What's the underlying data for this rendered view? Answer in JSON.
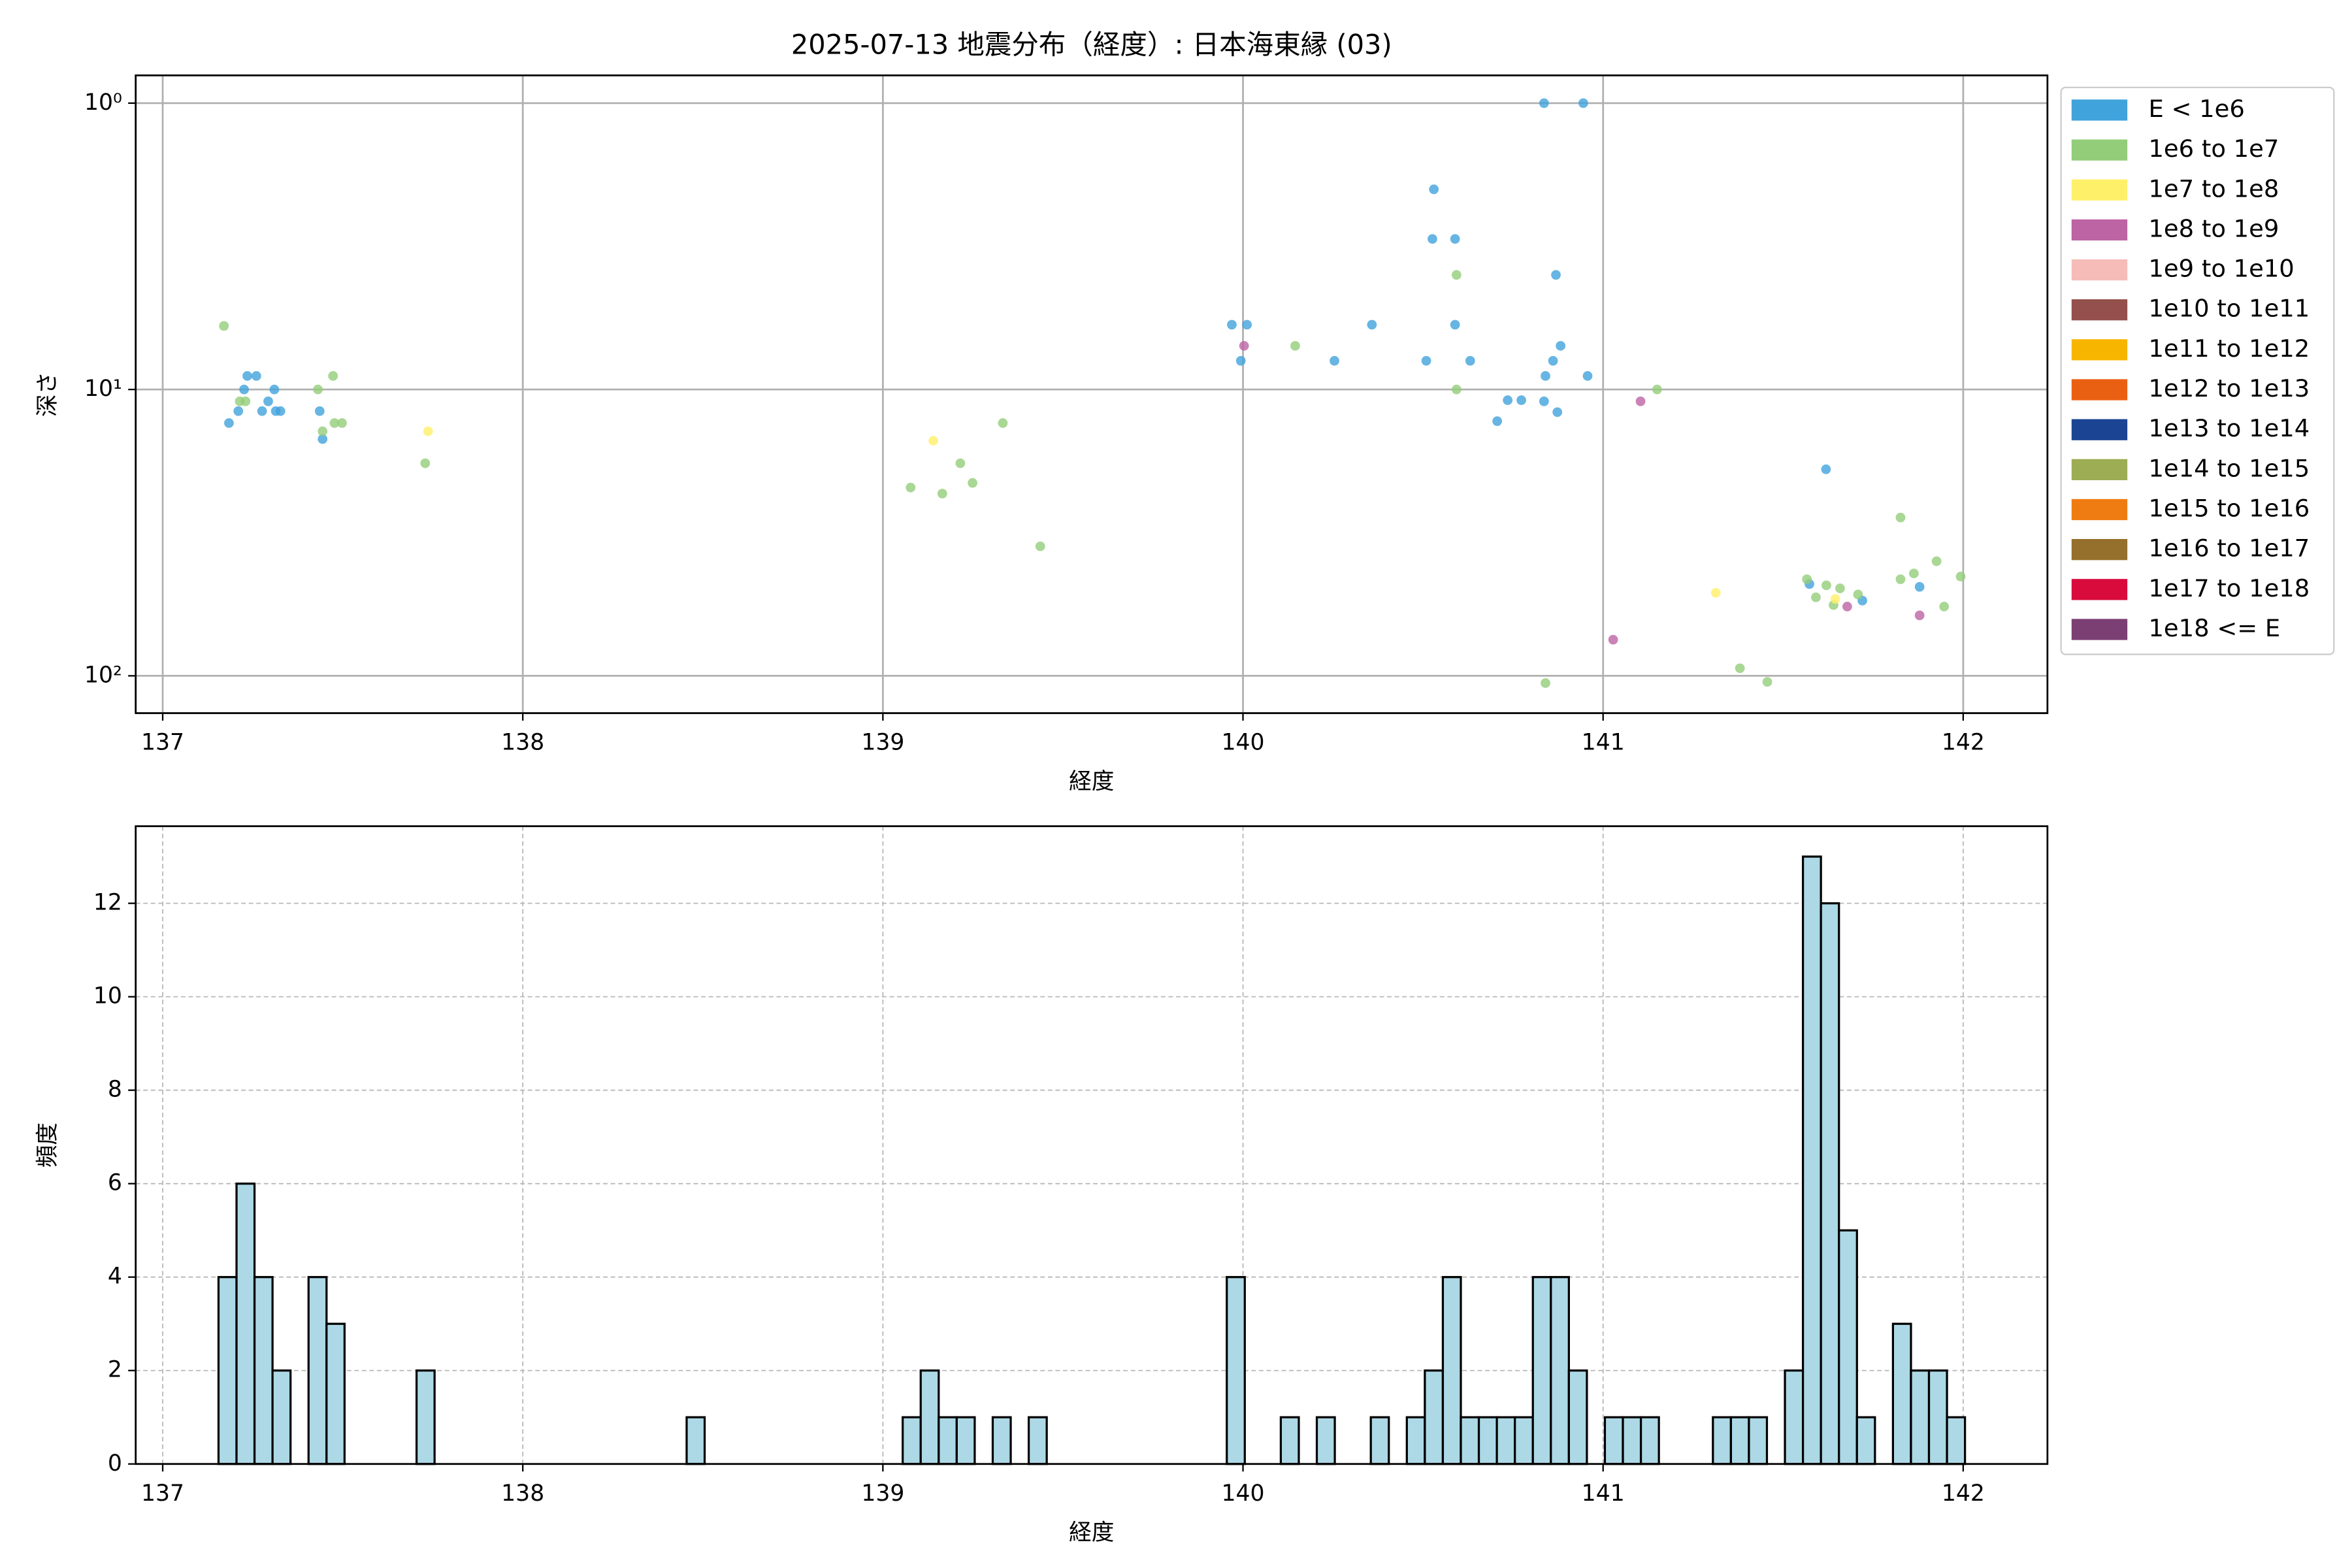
{
  "chart_data": [
    {
      "type": "scatter",
      "title": "2025-07-13 地震分布（経度）: 日本海東縁 (03)",
      "xlabel": "経度",
      "ylabel": "深さ",
      "xlim": [
        136.925,
        142.234
      ],
      "ylim": [
        135,
        0.8
      ],
      "yscale": "log",
      "grid": true,
      "legend": "outside upper right",
      "xticks": [
        137,
        138,
        139,
        140,
        141,
        142
      ],
      "yticks": [
        {
          "value": 1,
          "label": "10⁰"
        },
        {
          "value": 10,
          "label": "10¹"
        },
        {
          "value": 100,
          "label": "10²"
        }
      ],
      "series": [
        {
          "name": "E < 1e6",
          "color": "#41a3dc",
          "x": [
            137.184,
            137.21,
            137.226,
            137.235,
            137.26,
            137.276,
            137.293,
            137.31,
            137.314,
            137.327,
            137.436,
            137.444,
            139.969,
            140.011,
            139.994,
            140.254,
            140.358,
            140.509,
            140.53,
            140.526,
            140.589,
            140.589,
            140.631,
            140.706,
            140.735,
            140.773,
            140.836,
            140.945,
            140.869,
            140.882,
            140.861,
            140.84,
            140.836,
            140.873,
            140.957,
            141.619,
            141.573,
            141.72,
            141.879
          ],
          "values": [
            13.1,
            11.9,
            10,
            8.97,
            8.97,
            11.9,
            11,
            10,
            11.9,
            11.9,
            11.9,
            14.9,
            5.94,
            5.94,
            7.94,
            7.94,
            5.94,
            7.94,
            2,
            2.98,
            2.98,
            5.94,
            7.94,
            12.9,
            10.9,
            10.9,
            1,
            1,
            3.98,
            7.04,
            7.94,
            8.97,
            11,
            12,
            8.97,
            19,
            47.8,
            54.6,
            48.9
          ]
        },
        {
          "name": "1e6 to 1e7",
          "color": "#93cd79",
          "x": [
            137.17,
            137.214,
            137.23,
            137.431,
            137.473,
            137.444,
            137.477,
            137.498,
            137.729,
            139.077,
            139.165,
            139.215,
            139.249,
            139.333,
            139.437,
            140.145,
            140.593,
            140.593,
            141.15,
            141.566,
            141.591,
            141.62,
            141.658,
            141.64,
            141.708,
            141.826,
            141.826,
            141.863,
            141.926,
            141.947,
            141.993,
            141.38,
            141.456,
            140.84
          ],
          "values": [
            6,
            11,
            11,
            10,
            8.97,
            14,
            13.1,
            13.1,
            18.1,
            22,
            23.1,
            18.1,
            21.2,
            13.1,
            35.3,
            7.04,
            3.98,
            10,
            10,
            46,
            53.2,
            48.3,
            49.5,
            56.6,
            52,
            28,
            46,
            43.9,
            39.8,
            57.3,
            45,
            94.1,
            105,
            106
          ]
        },
        {
          "name": "1e7 to 1e8",
          "color": "#fff06a",
          "x": [
            137.737,
            139.14,
            141.313,
            141.645
          ],
          "values": [
            14,
            15.1,
            51.3,
            53.9
          ]
        },
        {
          "name": "1e8 to 1e9",
          "color": "#bd64a4",
          "x": [
            140.003,
            141.104,
            141.028,
            141.879,
            141.678
          ],
          "values": [
            7.04,
            11,
            74.8,
            61.5,
            57.3
          ]
        },
        {
          "name": "1e9 to 1e10",
          "color": "#f5bcb8",
          "x": [],
          "values": []
        },
        {
          "name": "1e10 to 1e11",
          "color": "#94504c",
          "x": [],
          "values": []
        },
        {
          "name": "1e11 to 1e12",
          "color": "#f8b500",
          "x": [],
          "values": []
        },
        {
          "name": "1e12 to 1e13",
          "color": "#ea6012",
          "x": [],
          "values": []
        },
        {
          "name": "1e13 to 1e14",
          "color": "#1b4592",
          "x": [],
          "values": []
        },
        {
          "name": "1e14 to 1e15",
          "color": "#9cad53",
          "x": [],
          "values": []
        },
        {
          "name": "1e15 to 1e16",
          "color": "#ef7c12",
          "x": [],
          "values": []
        },
        {
          "name": "1e16 to 1e17",
          "color": "#956f2c",
          "x": [],
          "values": []
        },
        {
          "name": "1e17 to 1e18",
          "color": "#d80b3c",
          "x": [],
          "values": []
        },
        {
          "name": "1e18 <= E",
          "color": "#7c3f74",
          "x": [],
          "values": []
        }
      ]
    },
    {
      "type": "histogram",
      "xlabel": "経度",
      "ylabel": "頻度",
      "color": "#add8e6",
      "edgecolor": "#000000",
      "grid": true,
      "xlim": [
        136.925,
        142.234
      ],
      "ylim": [
        0,
        13.65
      ],
      "xticks": [
        137,
        138,
        139,
        140,
        141,
        142
      ],
      "yticks": [
        0,
        2,
        4,
        6,
        8,
        10,
        12
      ],
      "bins": [
        137.155,
        137.205,
        137.255,
        137.305,
        137.355,
        137.405,
        137.455,
        137.505,
        137.555,
        137.605,
        137.655,
        137.705,
        137.755,
        137.805,
        137.855,
        137.905,
        137.955,
        138.005,
        138.055,
        138.105,
        138.155,
        138.205,
        138.255,
        138.305,
        138.355,
        138.405,
        138.455,
        138.505,
        138.555,
        138.605,
        138.655,
        138.705,
        138.755,
        138.805,
        138.855,
        138.905,
        138.955,
        139.005,
        139.055,
        139.105,
        139.155,
        139.205,
        139.255,
        139.305,
        139.355,
        139.405,
        139.455,
        139.505,
        139.555,
        139.605,
        139.655,
        139.705,
        139.755,
        139.805,
        139.855,
        139.905,
        139.955,
        140.005,
        140.055,
        140.105,
        140.155,
        140.205,
        140.255,
        140.305,
        140.355,
        140.405,
        140.455,
        140.505,
        140.555,
        140.605,
        140.655,
        140.705,
        140.755,
        140.805,
        140.855,
        140.905,
        140.955,
        141.005,
        141.055,
        141.105,
        141.155,
        141.205,
        141.255,
        141.305,
        141.355,
        141.405,
        141.455,
        141.505,
        141.555,
        141.605,
        141.655,
        141.705,
        141.755,
        141.805,
        141.855,
        141.905,
        141.955,
        142.005
      ],
      "values": [
        4,
        6,
        4,
        2,
        0,
        4,
        3,
        0,
        0,
        0,
        0,
        2,
        0,
        0,
        0,
        0,
        0,
        0,
        0,
        0,
        0,
        0,
        0,
        0,
        0,
        0,
        1,
        0,
        0,
        0,
        0,
        0,
        0,
        0,
        0,
        0,
        0,
        0,
        1,
        2,
        1,
        1,
        0,
        1,
        0,
        1,
        0,
        0,
        0,
        0,
        0,
        0,
        0,
        0,
        0,
        0,
        4,
        0,
        0,
        1,
        0,
        1,
        0,
        0,
        1,
        0,
        1,
        2,
        4,
        1,
        1,
        1,
        1,
        4,
        4,
        2,
        0,
        1,
        1,
        1,
        0,
        0,
        0,
        1,
        1,
        1,
        0,
        2,
        13,
        12,
        5,
        1,
        0,
        3,
        2,
        2,
        1
      ]
    }
  ]
}
